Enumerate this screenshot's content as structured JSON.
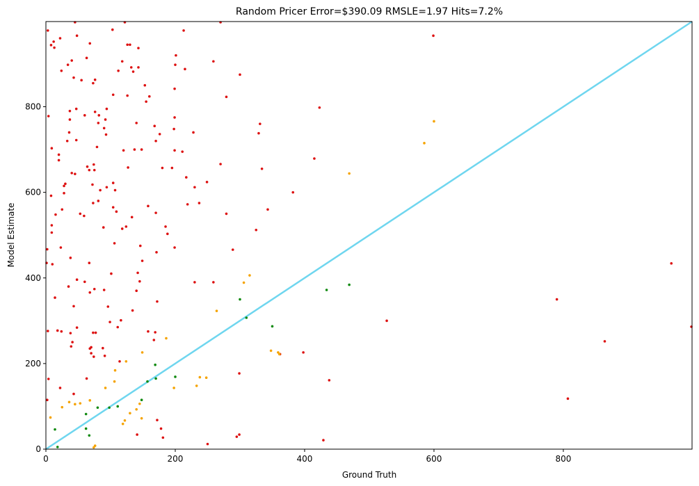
{
  "chart_data": {
    "type": "scatter",
    "title": "Random Pricer Error=$390.09 RMSLE=1.97 Hits=7.2%",
    "xlabel": "Ground Truth",
    "ylabel": "Model Estimate",
    "xlim": [
      0,
      999
    ],
    "ylim": [
      0,
      999
    ],
    "x_ticks": [
      0,
      200,
      400,
      600,
      800
    ],
    "y_ticks": [
      0,
      200,
      400,
      600,
      800
    ],
    "grid": false,
    "reference_line": {
      "from": [
        0,
        0
      ],
      "to": [
        999,
        999
      ],
      "color": "#6fd6ef"
    },
    "colors": {
      "red": "#dd1111",
      "orange": "#f5a300",
      "green": "#108a10"
    },
    "points": [
      [
        3,
        978,
        "red"
      ],
      [
        8,
        944,
        "red"
      ],
      [
        13,
        938,
        "red"
      ],
      [
        12,
        952,
        "red"
      ],
      [
        22,
        960,
        "red"
      ],
      [
        45,
        1000,
        "red"
      ],
      [
        48,
        966,
        "red"
      ],
      [
        103,
        980,
        "red"
      ],
      [
        122,
        998,
        "red"
      ],
      [
        213,
        978,
        "red"
      ],
      [
        270,
        999,
        "red"
      ],
      [
        34,
        898,
        "red"
      ],
      [
        40,
        908,
        "red"
      ],
      [
        24,
        884,
        "red"
      ],
      [
        68,
        948,
        "red"
      ],
      [
        63,
        914,
        "red"
      ],
      [
        43,
        868,
        "red"
      ],
      [
        55,
        862,
        "red"
      ],
      [
        73,
        855,
        "red"
      ],
      [
        76,
        863,
        "red"
      ],
      [
        118,
        906,
        "red"
      ],
      [
        126,
        945,
        "red"
      ],
      [
        130,
        945,
        "red"
      ],
      [
        143,
        937,
        "red"
      ],
      [
        112,
        884,
        "red"
      ],
      [
        132,
        892,
        "red"
      ],
      [
        135,
        882,
        "red"
      ],
      [
        143,
        892,
        "red"
      ],
      [
        153,
        850,
        "red"
      ],
      [
        160,
        824,
        "red"
      ],
      [
        126,
        826,
        "red"
      ],
      [
        104,
        828,
        "red"
      ],
      [
        200,
        898,
        "red"
      ],
      [
        201,
        920,
        "red"
      ],
      [
        215,
        888,
        "red"
      ],
      [
        259,
        906,
        "red"
      ],
      [
        300,
        875,
        "red"
      ],
      [
        599,
        966,
        "red"
      ],
      [
        4,
        778,
        "red"
      ],
      [
        37,
        790,
        "red"
      ],
      [
        47,
        795,
        "red"
      ],
      [
        37,
        770,
        "red"
      ],
      [
        60,
        780,
        "red"
      ],
      [
        76,
        788,
        "red"
      ],
      [
        82,
        780,
        "red"
      ],
      [
        94,
        795,
        "red"
      ],
      [
        92,
        770,
        "red"
      ],
      [
        155,
        812,
        "red"
      ],
      [
        199,
        842,
        "red"
      ],
      [
        279,
        823,
        "red"
      ],
      [
        423,
        798,
        "red"
      ],
      [
        36,
        740,
        "red"
      ],
      [
        33,
        720,
        "red"
      ],
      [
        47,
        722,
        "red"
      ],
      [
        81,
        762,
        "red"
      ],
      [
        90,
        750,
        "red"
      ],
      [
        93,
        735,
        "red"
      ],
      [
        140,
        762,
        "red"
      ],
      [
        168,
        755,
        "red"
      ],
      [
        176,
        736,
        "red"
      ],
      [
        170,
        720,
        "red"
      ],
      [
        199,
        775,
        "red"
      ],
      [
        198,
        748,
        "red"
      ],
      [
        228,
        740,
        "red"
      ],
      [
        331,
        760,
        "red"
      ],
      [
        329,
        738,
        "red"
      ],
      [
        9,
        703,
        "red"
      ],
      [
        20,
        688,
        "red"
      ],
      [
        20,
        675,
        "red"
      ],
      [
        79,
        706,
        "red"
      ],
      [
        64,
        660,
        "red"
      ],
      [
        67,
        652,
        "red"
      ],
      [
        74,
        665,
        "red"
      ],
      [
        75,
        652,
        "red"
      ],
      [
        120,
        698,
        "red"
      ],
      [
        137,
        700,
        "red"
      ],
      [
        148,
        700,
        "red"
      ],
      [
        127,
        658,
        "red"
      ],
      [
        180,
        657,
        "red"
      ],
      [
        195,
        657,
        "red"
      ],
      [
        199,
        698,
        "red"
      ],
      [
        211,
        695,
        "red"
      ],
      [
        270,
        666,
        "red"
      ],
      [
        334,
        655,
        "red"
      ],
      [
        415,
        679,
        "red"
      ],
      [
        40,
        645,
        "red"
      ],
      [
        45,
        643,
        "red"
      ],
      [
        30,
        620,
        "red"
      ],
      [
        28,
        615,
        "red"
      ],
      [
        28,
        598,
        "red"
      ],
      [
        8,
        592,
        "red"
      ],
      [
        72,
        618,
        "red"
      ],
      [
        84,
        605,
        "red"
      ],
      [
        94,
        612,
        "red"
      ],
      [
        104,
        622,
        "red"
      ],
      [
        107,
        605,
        "red"
      ],
      [
        73,
        575,
        "red"
      ],
      [
        81,
        580,
        "red"
      ],
      [
        15,
        548,
        "red"
      ],
      [
        25,
        560,
        "red"
      ],
      [
        53,
        550,
        "red"
      ],
      [
        59,
        545,
        "red"
      ],
      [
        104,
        565,
        "red"
      ],
      [
        109,
        555,
        "red"
      ],
      [
        158,
        568,
        "red"
      ],
      [
        170,
        552,
        "red"
      ],
      [
        217,
        635,
        "red"
      ],
      [
        230,
        612,
        "red"
      ],
      [
        249,
        624,
        "red"
      ],
      [
        219,
        572,
        "red"
      ],
      [
        237,
        575,
        "red"
      ],
      [
        279,
        550,
        "red"
      ],
      [
        343,
        560,
        "red"
      ],
      [
        382,
        600,
        "red"
      ],
      [
        9,
        523,
        "red"
      ],
      [
        9,
        506,
        "red"
      ],
      [
        89,
        518,
        "red"
      ],
      [
        118,
        515,
        "red"
      ],
      [
        124,
        520,
        "red"
      ],
      [
        133,
        542,
        "red"
      ],
      [
        185,
        520,
        "red"
      ],
      [
        188,
        503,
        "red"
      ],
      [
        325,
        512,
        "red"
      ],
      [
        2,
        467,
        "red"
      ],
      [
        23,
        471,
        "red"
      ],
      [
        106,
        481,
        "red"
      ],
      [
        146,
        475,
        "red"
      ],
      [
        171,
        460,
        "red"
      ],
      [
        199,
        471,
        "red"
      ],
      [
        289,
        466,
        "red"
      ],
      [
        1,
        435,
        "red"
      ],
      [
        10,
        432,
        "red"
      ],
      [
        38,
        447,
        "red"
      ],
      [
        67,
        435,
        "red"
      ],
      [
        101,
        410,
        "red"
      ],
      [
        142,
        412,
        "red"
      ],
      [
        149,
        440,
        "red"
      ],
      [
        145,
        392,
        "red"
      ],
      [
        48,
        396,
        "red"
      ],
      [
        60,
        391,
        "red"
      ],
      [
        35,
        380,
        "red"
      ],
      [
        75,
        374,
        "red"
      ],
      [
        90,
        372,
        "red"
      ],
      [
        140,
        370,
        "red"
      ],
      [
        230,
        390,
        "red"
      ],
      [
        259,
        390,
        "red"
      ],
      [
        967,
        434,
        "red"
      ],
      [
        14,
        354,
        "red"
      ],
      [
        43,
        334,
        "red"
      ],
      [
        68,
        366,
        "red"
      ],
      [
        96,
        333,
        "red"
      ],
      [
        134,
        324,
        "red"
      ],
      [
        172,
        345,
        "red"
      ],
      [
        790,
        350,
        "red"
      ],
      [
        99,
        297,
        "red"
      ],
      [
        111,
        285,
        "red"
      ],
      [
        116,
        301,
        "red"
      ],
      [
        3,
        276,
        "red"
      ],
      [
        18,
        277,
        "red"
      ],
      [
        24,
        275,
        "red"
      ],
      [
        38,
        271,
        "red"
      ],
      [
        48,
        284,
        "red"
      ],
      [
        41,
        250,
        "red"
      ],
      [
        39,
        240,
        "red"
      ],
      [
        68,
        235,
        "red"
      ],
      [
        70,
        224,
        "red"
      ],
      [
        70,
        238,
        "red"
      ],
      [
        74,
        216,
        "red"
      ],
      [
        73,
        272,
        "red"
      ],
      [
        77,
        272,
        "red"
      ],
      [
        88,
        236,
        "red"
      ],
      [
        91,
        218,
        "red"
      ],
      [
        158,
        275,
        "red"
      ],
      [
        167,
        255,
        "red"
      ],
      [
        169,
        273,
        "red"
      ],
      [
        527,
        300,
        "red"
      ],
      [
        998,
        286,
        "red"
      ],
      [
        864,
        252,
        "red"
      ],
      [
        114,
        205,
        "red"
      ],
      [
        362,
        222,
        "red"
      ],
      [
        398,
        226,
        "red"
      ],
      [
        4,
        164,
        "red"
      ],
      [
        22,
        143,
        "red"
      ],
      [
        63,
        165,
        "red"
      ],
      [
        299,
        177,
        "red"
      ],
      [
        438,
        161,
        "red"
      ],
      [
        2,
        115,
        "red"
      ],
      [
        43,
        129,
        "red"
      ],
      [
        807,
        118,
        "red"
      ],
      [
        172,
        68,
        "red"
      ],
      [
        178,
        48,
        "red"
      ],
      [
        141,
        34,
        "red"
      ],
      [
        181,
        27,
        "red"
      ],
      [
        295,
        29,
        "red"
      ],
      [
        299,
        34,
        "red"
      ],
      [
        250,
        12,
        "red"
      ],
      [
        429,
        21,
        "red"
      ],
      [
        7,
        74,
        "orange"
      ],
      [
        25,
        98,
        "orange"
      ],
      [
        36,
        110,
        "orange"
      ],
      [
        45,
        105,
        "orange"
      ],
      [
        53,
        107,
        "orange"
      ],
      [
        68,
        114,
        "orange"
      ],
      [
        92,
        143,
        "orange"
      ],
      [
        106,
        158,
        "orange"
      ],
      [
        107,
        184,
        "orange"
      ],
      [
        124,
        205,
        "orange"
      ],
      [
        119,
        59,
        "orange"
      ],
      [
        122,
        67,
        "orange"
      ],
      [
        130,
        84,
        "orange"
      ],
      [
        140,
        93,
        "orange"
      ],
      [
        145,
        106,
        "orange"
      ],
      [
        148,
        72,
        "orange"
      ],
      [
        149,
        226,
        "orange"
      ],
      [
        186,
        259,
        "orange"
      ],
      [
        198,
        143,
        "orange"
      ],
      [
        233,
        148,
        "orange"
      ],
      [
        238,
        168,
        "orange"
      ],
      [
        248,
        167,
        "orange"
      ],
      [
        264,
        323,
        "orange"
      ],
      [
        306,
        389,
        "orange"
      ],
      [
        315,
        406,
        "orange"
      ],
      [
        348,
        230,
        "orange"
      ],
      [
        359,
        226,
        "orange"
      ],
      [
        361,
        222,
        "orange"
      ],
      [
        469,
        644,
        "orange"
      ],
      [
        585,
        715,
        "orange"
      ],
      [
        600,
        766,
        "orange"
      ],
      [
        74,
        4,
        "orange"
      ],
      [
        76,
        8,
        "orange"
      ],
      [
        14,
        46,
        "green"
      ],
      [
        18,
        5,
        "green"
      ],
      [
        62,
        48,
        "green"
      ],
      [
        62,
        82,
        "green"
      ],
      [
        67,
        32,
        "green"
      ],
      [
        80,
        97,
        "green"
      ],
      [
        98,
        97,
        "green"
      ],
      [
        111,
        100,
        "green"
      ],
      [
        148,
        115,
        "green"
      ],
      [
        157,
        158,
        "green"
      ],
      [
        169,
        197,
        "green"
      ],
      [
        170,
        165,
        "green"
      ],
      [
        200,
        169,
        "green"
      ],
      [
        300,
        350,
        "green"
      ],
      [
        310,
        307,
        "green"
      ],
      [
        350,
        287,
        "green"
      ],
      [
        434,
        372,
        "green"
      ],
      [
        469,
        384,
        "green"
      ]
    ]
  }
}
